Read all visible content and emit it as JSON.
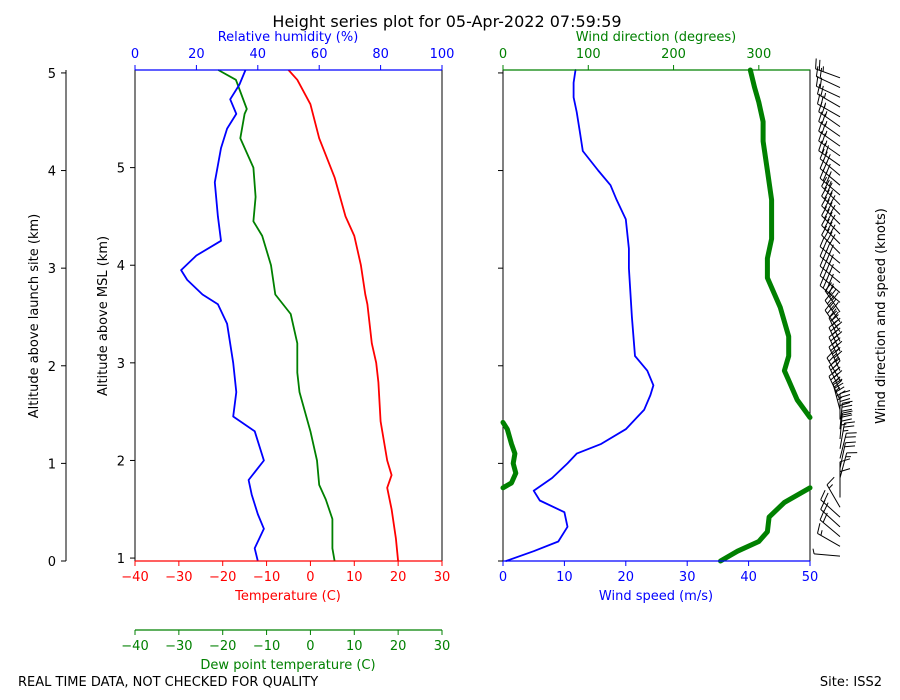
{
  "title": "Height series plot for 05-Apr-2022 07:59:59",
  "footer": {
    "left": "REAL TIME DATA, NOT CHECKED FOR QUALITY",
    "right": "Site: ISS2"
  },
  "colors": {
    "temperature": "#ff0000",
    "dewpoint": "#008000",
    "humidity": "#0000ff",
    "wind_speed": "#0000ff",
    "wind_direction": "#008000",
    "barbs": "#000000"
  },
  "chart_data": [
    {
      "type": "line",
      "name": "thermodynamic-profile",
      "axes": {
        "x_bottom": {
          "label": "Temperature (C)",
          "range": [
            -40,
            30
          ],
          "ticks": [
            -40,
            -30,
            -20,
            -10,
            0,
            10,
            20,
            30
          ]
        },
        "x_dewpoint": {
          "label": "Dew point temperature (C)",
          "range": [
            -40,
            30
          ],
          "ticks": [
            -40,
            -30,
            -20,
            -10,
            0,
            10,
            20,
            30
          ]
        },
        "x_top": {
          "label": "Relative humidity (%)",
          "range": [
            0,
            100
          ],
          "ticks": [
            0,
            20,
            40,
            60,
            80,
            100
          ]
        },
        "y_msl": {
          "label": "Altitude above MSL (km)",
          "range": [
            0.97,
            6.0
          ],
          "ticks": [
            1,
            2,
            3,
            4,
            5
          ]
        },
        "y_site": {
          "label": "Altitude above launch site (km)",
          "range": [
            0,
            5.03
          ],
          "ticks": [
            0,
            1,
            2,
            3,
            4,
            5
          ]
        }
      },
      "series": [
        {
          "name": "Temperature",
          "x_axis": "x_bottom",
          "points": [
            [
              20.0,
              0.97
            ],
            [
              19.5,
              1.2
            ],
            [
              18.5,
              1.5
            ],
            [
              17.5,
              1.72
            ],
            [
              18.5,
              1.85
            ],
            [
              17.5,
              2.0
            ],
            [
              16.0,
              2.4
            ],
            [
              15.5,
              2.8
            ],
            [
              15.0,
              3.0
            ],
            [
              14.0,
              3.2
            ],
            [
              13.0,
              3.6
            ],
            [
              12.5,
              3.7
            ],
            [
              11.5,
              4.0
            ],
            [
              10.0,
              4.3
            ],
            [
              8.0,
              4.5
            ],
            [
              5.5,
              4.9
            ],
            [
              2.0,
              5.3
            ],
            [
              0.0,
              5.65
            ],
            [
              -3.0,
              5.9
            ],
            [
              -5.0,
              6.0
            ]
          ]
        },
        {
          "name": "Dew point",
          "x_axis": "x_dewpoint",
          "points": [
            [
              5.5,
              0.97
            ],
            [
              5.0,
              1.1
            ],
            [
              5.0,
              1.4
            ],
            [
              3.5,
              1.6
            ],
            [
              2.0,
              1.75
            ],
            [
              1.5,
              2.0
            ],
            [
              0.0,
              2.3
            ],
            [
              -2.5,
              2.7
            ],
            [
              -3.0,
              2.9
            ],
            [
              -3.0,
              3.2
            ],
            [
              -4.5,
              3.5
            ],
            [
              -8.0,
              3.7
            ],
            [
              -9.0,
              4.0
            ],
            [
              -11.0,
              4.3
            ],
            [
              -13.0,
              4.45
            ],
            [
              -12.5,
              4.7
            ],
            [
              -13.0,
              5.0
            ],
            [
              -16.0,
              5.3
            ],
            [
              -15.0,
              5.55
            ],
            [
              -14.5,
              5.6
            ],
            [
              -17.0,
              5.9
            ],
            [
              -21.0,
              6.0
            ]
          ]
        },
        {
          "name": "Relative humidity",
          "x_axis": "x_top",
          "points": [
            [
              40.0,
              0.97
            ],
            [
              39.0,
              1.1
            ],
            [
              42.0,
              1.3
            ],
            [
              40.0,
              1.45
            ],
            [
              38.0,
              1.65
            ],
            [
              37.0,
              1.8
            ],
            [
              42.0,
              2.0
            ],
            [
              39.0,
              2.3
            ],
            [
              32.0,
              2.45
            ],
            [
              33.0,
              2.7
            ],
            [
              32.0,
              3.0
            ],
            [
              30.0,
              3.4
            ],
            [
              27.0,
              3.6
            ],
            [
              22.0,
              3.7
            ],
            [
              17.0,
              3.85
            ],
            [
              15.0,
              3.95
            ],
            [
              20.0,
              4.1
            ],
            [
              28.0,
              4.25
            ],
            [
              27.0,
              4.5
            ],
            [
              26.0,
              4.85
            ],
            [
              28.0,
              5.2
            ],
            [
              30.0,
              5.4
            ],
            [
              33.0,
              5.55
            ],
            [
              31.0,
              5.7
            ],
            [
              34.0,
              5.85
            ],
            [
              36.0,
              6.0
            ]
          ]
        }
      ]
    },
    {
      "type": "line",
      "name": "wind-profile",
      "axes": {
        "x_bottom": {
          "label": "Wind speed (m/s)",
          "range": [
            0,
            50
          ],
          "ticks": [
            0,
            10,
            20,
            30,
            40,
            50
          ]
        },
        "x_top": {
          "label": "Wind direction (degrees)",
          "range": [
            0,
            360
          ],
          "ticks": [
            0,
            100,
            200,
            300
          ]
        },
        "y": {
          "range": [
            0,
            5.03
          ]
        },
        "y_right": {
          "label": "Wind direction and speed (knots)"
        }
      },
      "series": [
        {
          "name": "Wind speed",
          "x_axis": "x_bottom",
          "points": [
            [
              0.5,
              0.0
            ],
            [
              5.0,
              0.1
            ],
            [
              9.0,
              0.2
            ],
            [
              10.5,
              0.35
            ],
            [
              10.0,
              0.5
            ],
            [
              6.0,
              0.62
            ],
            [
              5.0,
              0.72
            ],
            [
              8.0,
              0.85
            ],
            [
              10.5,
              1.0
            ],
            [
              12.0,
              1.1
            ],
            [
              16.0,
              1.2
            ],
            [
              20.0,
              1.35
            ],
            [
              23.0,
              1.55
            ],
            [
              24.0,
              1.7
            ],
            [
              24.5,
              1.8
            ],
            [
              23.5,
              1.95
            ],
            [
              21.5,
              2.1
            ],
            [
              21.0,
              2.5
            ],
            [
              20.5,
              3.0
            ],
            [
              20.5,
              3.2
            ],
            [
              20.0,
              3.5
            ],
            [
              18.5,
              3.7
            ],
            [
              17.5,
              3.85
            ],
            [
              15.5,
              4.0
            ],
            [
              13.0,
              4.2
            ],
            [
              12.5,
              4.4
            ],
            [
              12.0,
              4.6
            ],
            [
              11.5,
              4.75
            ],
            [
              11.5,
              4.9
            ],
            [
              11.8,
              5.03
            ]
          ]
        },
        {
          "name": "Wind direction",
          "x_axis": "x_top",
          "points": [
            [
              255,
              0.0
            ],
            [
              275,
              0.1
            ],
            [
              300,
              0.2
            ],
            [
              310,
              0.3
            ],
            [
              312,
              0.45
            ],
            [
              330,
              0.6
            ],
            [
              360,
              0.75
            ]
          ]
        },
        {
          "name": "Wind direction (wrapped)",
          "x_axis": "x_top",
          "points": [
            [
              0,
              0.75
            ],
            [
              10,
              0.8
            ],
            [
              15,
              0.9
            ],
            [
              12,
              1.0
            ],
            [
              14,
              1.1
            ],
            [
              10,
              1.2
            ],
            [
              5,
              1.35
            ],
            [
              0,
              1.42
            ]
          ]
        },
        {
          "name": "Wind direction (upper)",
          "x_axis": "x_top",
          "points": [
            [
              360,
              1.47
            ],
            [
              345,
              1.65
            ],
            [
              335,
              1.85
            ],
            [
              330,
              1.95
            ],
            [
              335,
              2.1
            ],
            [
              335,
              2.3
            ],
            [
              325,
              2.6
            ],
            [
              310,
              2.9
            ],
            [
              310,
              3.1
            ],
            [
              315,
              3.3
            ],
            [
              315,
              3.5
            ],
            [
              315,
              3.7
            ],
            [
              310,
              4.0
            ],
            [
              305,
              4.3
            ],
            [
              305,
              4.5
            ],
            [
              300,
              4.7
            ],
            [
              295,
              4.85
            ],
            [
              290,
              5.03
            ]
          ]
        }
      ]
    }
  ]
}
